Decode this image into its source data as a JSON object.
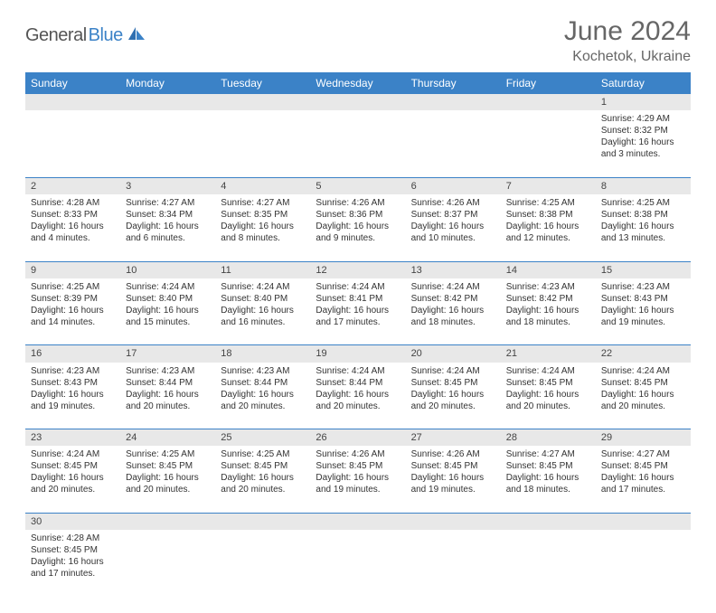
{
  "logo": {
    "part1": "General",
    "part2": "Blue"
  },
  "title": "June 2024",
  "subtitle": "Kochetok, Ukraine",
  "colors": {
    "header_bg": "#3b82c7",
    "header_text": "#ffffff",
    "daynum_bg": "#e8e8e8",
    "divider": "#3b82c7",
    "logo_blue": "#3b82c7",
    "logo_gray": "#555555"
  },
  "weekdays": [
    "Sunday",
    "Monday",
    "Tuesday",
    "Wednesday",
    "Thursday",
    "Friday",
    "Saturday"
  ],
  "weeks": [
    [
      null,
      null,
      null,
      null,
      null,
      null,
      {
        "d": "1",
        "sr": "Sunrise: 4:29 AM",
        "ss": "Sunset: 8:32 PM",
        "dl1": "Daylight: 16 hours",
        "dl2": "and 3 minutes."
      }
    ],
    [
      {
        "d": "2",
        "sr": "Sunrise: 4:28 AM",
        "ss": "Sunset: 8:33 PM",
        "dl1": "Daylight: 16 hours",
        "dl2": "and 4 minutes."
      },
      {
        "d": "3",
        "sr": "Sunrise: 4:27 AM",
        "ss": "Sunset: 8:34 PM",
        "dl1": "Daylight: 16 hours",
        "dl2": "and 6 minutes."
      },
      {
        "d": "4",
        "sr": "Sunrise: 4:27 AM",
        "ss": "Sunset: 8:35 PM",
        "dl1": "Daylight: 16 hours",
        "dl2": "and 8 minutes."
      },
      {
        "d": "5",
        "sr": "Sunrise: 4:26 AM",
        "ss": "Sunset: 8:36 PM",
        "dl1": "Daylight: 16 hours",
        "dl2": "and 9 minutes."
      },
      {
        "d": "6",
        "sr": "Sunrise: 4:26 AM",
        "ss": "Sunset: 8:37 PM",
        "dl1": "Daylight: 16 hours",
        "dl2": "and 10 minutes."
      },
      {
        "d": "7",
        "sr": "Sunrise: 4:25 AM",
        "ss": "Sunset: 8:38 PM",
        "dl1": "Daylight: 16 hours",
        "dl2": "and 12 minutes."
      },
      {
        "d": "8",
        "sr": "Sunrise: 4:25 AM",
        "ss": "Sunset: 8:38 PM",
        "dl1": "Daylight: 16 hours",
        "dl2": "and 13 minutes."
      }
    ],
    [
      {
        "d": "9",
        "sr": "Sunrise: 4:25 AM",
        "ss": "Sunset: 8:39 PM",
        "dl1": "Daylight: 16 hours",
        "dl2": "and 14 minutes."
      },
      {
        "d": "10",
        "sr": "Sunrise: 4:24 AM",
        "ss": "Sunset: 8:40 PM",
        "dl1": "Daylight: 16 hours",
        "dl2": "and 15 minutes."
      },
      {
        "d": "11",
        "sr": "Sunrise: 4:24 AM",
        "ss": "Sunset: 8:40 PM",
        "dl1": "Daylight: 16 hours",
        "dl2": "and 16 minutes."
      },
      {
        "d": "12",
        "sr": "Sunrise: 4:24 AM",
        "ss": "Sunset: 8:41 PM",
        "dl1": "Daylight: 16 hours",
        "dl2": "and 17 minutes."
      },
      {
        "d": "13",
        "sr": "Sunrise: 4:24 AM",
        "ss": "Sunset: 8:42 PM",
        "dl1": "Daylight: 16 hours",
        "dl2": "and 18 minutes."
      },
      {
        "d": "14",
        "sr": "Sunrise: 4:23 AM",
        "ss": "Sunset: 8:42 PM",
        "dl1": "Daylight: 16 hours",
        "dl2": "and 18 minutes."
      },
      {
        "d": "15",
        "sr": "Sunrise: 4:23 AM",
        "ss": "Sunset: 8:43 PM",
        "dl1": "Daylight: 16 hours",
        "dl2": "and 19 minutes."
      }
    ],
    [
      {
        "d": "16",
        "sr": "Sunrise: 4:23 AM",
        "ss": "Sunset: 8:43 PM",
        "dl1": "Daylight: 16 hours",
        "dl2": "and 19 minutes."
      },
      {
        "d": "17",
        "sr": "Sunrise: 4:23 AM",
        "ss": "Sunset: 8:44 PM",
        "dl1": "Daylight: 16 hours",
        "dl2": "and 20 minutes."
      },
      {
        "d": "18",
        "sr": "Sunrise: 4:23 AM",
        "ss": "Sunset: 8:44 PM",
        "dl1": "Daylight: 16 hours",
        "dl2": "and 20 minutes."
      },
      {
        "d": "19",
        "sr": "Sunrise: 4:24 AM",
        "ss": "Sunset: 8:44 PM",
        "dl1": "Daylight: 16 hours",
        "dl2": "and 20 minutes."
      },
      {
        "d": "20",
        "sr": "Sunrise: 4:24 AM",
        "ss": "Sunset: 8:45 PM",
        "dl1": "Daylight: 16 hours",
        "dl2": "and 20 minutes."
      },
      {
        "d": "21",
        "sr": "Sunrise: 4:24 AM",
        "ss": "Sunset: 8:45 PM",
        "dl1": "Daylight: 16 hours",
        "dl2": "and 20 minutes."
      },
      {
        "d": "22",
        "sr": "Sunrise: 4:24 AM",
        "ss": "Sunset: 8:45 PM",
        "dl1": "Daylight: 16 hours",
        "dl2": "and 20 minutes."
      }
    ],
    [
      {
        "d": "23",
        "sr": "Sunrise: 4:24 AM",
        "ss": "Sunset: 8:45 PM",
        "dl1": "Daylight: 16 hours",
        "dl2": "and 20 minutes."
      },
      {
        "d": "24",
        "sr": "Sunrise: 4:25 AM",
        "ss": "Sunset: 8:45 PM",
        "dl1": "Daylight: 16 hours",
        "dl2": "and 20 minutes."
      },
      {
        "d": "25",
        "sr": "Sunrise: 4:25 AM",
        "ss": "Sunset: 8:45 PM",
        "dl1": "Daylight: 16 hours",
        "dl2": "and 20 minutes."
      },
      {
        "d": "26",
        "sr": "Sunrise: 4:26 AM",
        "ss": "Sunset: 8:45 PM",
        "dl1": "Daylight: 16 hours",
        "dl2": "and 19 minutes."
      },
      {
        "d": "27",
        "sr": "Sunrise: 4:26 AM",
        "ss": "Sunset: 8:45 PM",
        "dl1": "Daylight: 16 hours",
        "dl2": "and 19 minutes."
      },
      {
        "d": "28",
        "sr": "Sunrise: 4:27 AM",
        "ss": "Sunset: 8:45 PM",
        "dl1": "Daylight: 16 hours",
        "dl2": "and 18 minutes."
      },
      {
        "d": "29",
        "sr": "Sunrise: 4:27 AM",
        "ss": "Sunset: 8:45 PM",
        "dl1": "Daylight: 16 hours",
        "dl2": "and 17 minutes."
      }
    ],
    [
      {
        "d": "30",
        "sr": "Sunrise: 4:28 AM",
        "ss": "Sunset: 8:45 PM",
        "dl1": "Daylight: 16 hours",
        "dl2": "and 17 minutes."
      },
      null,
      null,
      null,
      null,
      null,
      null
    ]
  ]
}
